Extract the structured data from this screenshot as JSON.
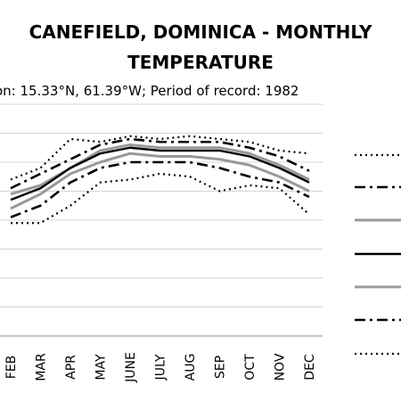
{
  "chart": {
    "title_line1": "CANEFIELD, DOMINICA - MONTHLY",
    "title_line2": "TEMPERATURE",
    "subtitle": "on: 15.33°N, 61.39°W; Period of record: 1982"
  },
  "chart_data": {
    "type": "line",
    "title": "CANEFIELD, DOMINICA - MONTHLY TEMPERATURE",
    "subtitle": "on: 15.33°N, 61.39°W; Period of record: 1982",
    "categories": [
      "FEB",
      "MAR",
      "APR",
      "MAY",
      "JUNE",
      "JULY",
      "AUG",
      "SEP",
      "OCT",
      "NOV",
      "DEC"
    ],
    "ylim": [
      0,
      8
    ],
    "grid": true,
    "legend_position": "right",
    "series": [
      {
        "style": "dotted",
        "color": "#000000",
        "width": 2.2,
        "values": [
          5.4,
          5.8,
          6.8,
          6.7,
          6.9,
          6.8,
          6.9,
          6.8,
          6.7,
          6.4,
          6.3
        ]
      },
      {
        "style": "dashdot",
        "color": "#000000",
        "width": 2.6,
        "values": [
          5.1,
          5.6,
          6.1,
          6.6,
          6.8,
          6.7,
          6.7,
          6.7,
          6.5,
          6.2,
          5.7
        ]
      },
      {
        "style": "solid",
        "color": "#999999",
        "width": 3.0,
        "values": [
          4.9,
          5.2,
          5.8,
          6.4,
          6.6,
          6.5,
          6.5,
          6.5,
          6.3,
          5.9,
          5.4
        ]
      },
      {
        "style": "solid",
        "color": "#000000",
        "width": 2.4,
        "values": [
          4.7,
          5.1,
          5.8,
          6.3,
          6.5,
          6.4,
          6.4,
          6.4,
          6.2,
          5.8,
          5.3
        ]
      },
      {
        "style": "solid",
        "color": "#999999",
        "width": 3.0,
        "values": [
          4.4,
          4.9,
          5.6,
          6.0,
          6.3,
          6.2,
          6.2,
          6.1,
          5.9,
          5.5,
          5.0
        ]
      },
      {
        "style": "dashdot",
        "color": "#000000",
        "width": 2.6,
        "values": [
          4.1,
          4.5,
          5.3,
          5.8,
          6.0,
          6.0,
          6.0,
          5.8,
          5.5,
          5.3,
          4.8
        ]
      },
      {
        "style": "dotted",
        "color": "#000000",
        "width": 2.2,
        "values": [
          3.9,
          3.9,
          4.5,
          5.3,
          5.4,
          5.6,
          5.5,
          5.0,
          5.2,
          5.1,
          4.2
        ]
      }
    ]
  }
}
